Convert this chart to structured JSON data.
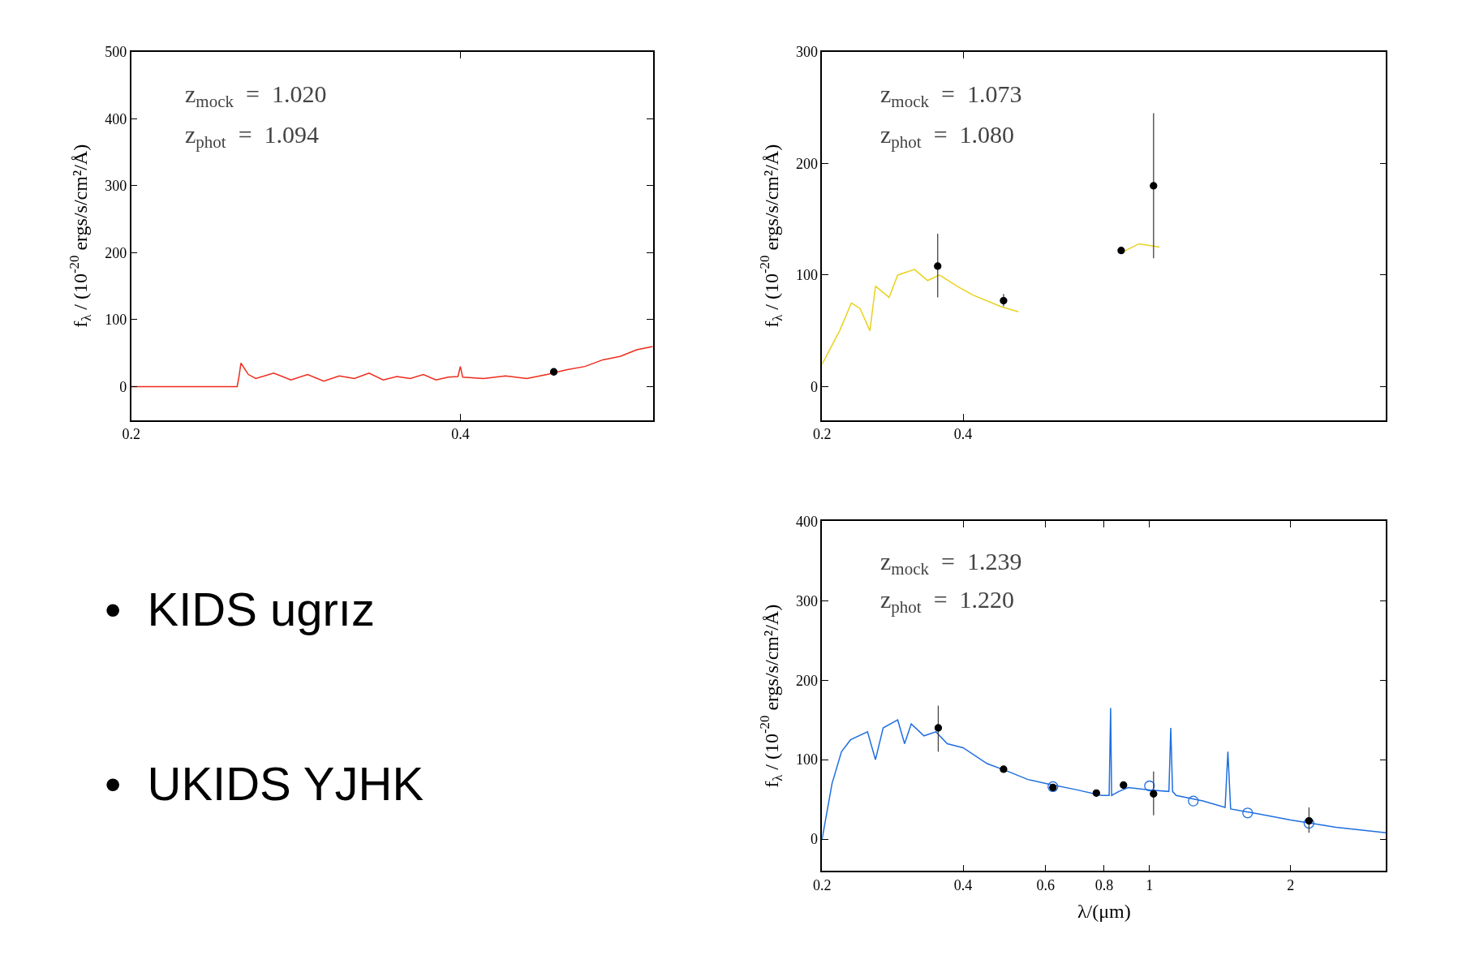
{
  "chart_data": [
    {
      "type": "line",
      "ylabel": "f$_{λ}$ / (10$^{-20}$ ergs/s/cm²/Å)",
      "log": "x",
      "xlim": [
        0.2,
        0.6
      ],
      "xticks": [
        0.2,
        0.4
      ],
      "ylim": [
        -50,
        500
      ],
      "yticks": [
        0,
        100,
        200,
        300,
        400,
        500
      ],
      "annotations": [
        "z$_{mock}$  =  1.020",
        "z$_{phot}$  =  1.094"
      ],
      "series": [
        {
          "type": "line",
          "color": "#ee2a1b",
          "x": [
            0.2,
            0.25,
            0.251,
            0.252,
            0.256,
            0.26,
            0.27,
            0.28,
            0.29,
            0.3,
            0.31,
            0.32,
            0.33,
            0.34,
            0.35,
            0.36,
            0.37,
            0.38,
            0.39,
            0.398,
            0.4,
            0.402,
            0.42,
            0.44,
            0.46,
            0.48,
            0.5,
            0.52,
            0.54,
            0.56,
            0.58,
            0.6
          ],
          "values": [
            0,
            0,
            15,
            35,
            18,
            12,
            20,
            10,
            18,
            8,
            16,
            12,
            20,
            10,
            15,
            12,
            18,
            10,
            14,
            15,
            30,
            14,
            12,
            16,
            12,
            18,
            25,
            30,
            40,
            45,
            55,
            60
          ]
        },
        {
          "type": "scatter",
          "marker": "circle",
          "color": "#000000",
          "x": [
            0.487
          ],
          "values": [
            22
          ]
        }
      ]
    },
    {
      "type": "line",
      "ylabel": "f$_{λ}$ / (10$^{-20}$ ergs/s/cm²/Å)",
      "log": "x",
      "xlim": [
        0.2,
        3.2
      ],
      "xticks": [
        0.2,
        0.4
      ],
      "ylim": [
        -30,
        300
      ],
      "yticks": [
        0,
        100,
        200,
        300
      ],
      "annotations": [
        "z$_{mock}$  =  1.073",
        "z$_{phot}$  =  1.080"
      ],
      "series": [
        {
          "type": "line",
          "color": "#e8d21c",
          "x": [
            0.2,
            0.218,
            0.231,
            0.241,
            0.253,
            0.26,
            0.278,
            0.29,
            0.315,
            0.336,
            0.356,
            0.388,
            0.42,
            0.48,
            0.525,
            0.53,
            0.87,
            0.95,
            1.05
          ],
          "values": [
            20,
            50,
            75,
            70,
            50,
            90,
            80,
            100,
            105,
            95,
            100,
            90,
            82,
            72,
            67,
            null,
            120,
            128,
            125
          ]
        },
        {
          "type": "scatter",
          "marker": "circle",
          "color": "#000000",
          "x": [
            0.353,
            0.488,
            0.87,
            1.02
          ],
          "values": [
            108,
            77,
            122,
            180
          ],
          "errors": [
            [
              80,
              137
            ],
            [
              72,
              83
            ],
            null,
            [
              115,
              245
            ]
          ]
        }
      ]
    },
    {
      "type": "line",
      "ylabel": "f$_{λ}$ / (10$^{-20}$ ergs/s/cm²/Å)",
      "xlabel": "λ/(μm)",
      "log": "x",
      "xlim": [
        0.2,
        3.2
      ],
      "xticks": [
        0.2,
        0.4,
        0.6,
        0.8,
        1,
        2
      ],
      "ylim": [
        -40,
        400
      ],
      "yticks": [
        0,
        100,
        200,
        300,
        400
      ],
      "annotations": [
        "z$_{mock}$  =  1.239",
        "z$_{phot}$  =  1.220"
      ],
      "series": [
        {
          "type": "line",
          "color": "#1f6fe0",
          "x": [
            0.2,
            0.21,
            0.22,
            0.23,
            0.25,
            0.26,
            0.27,
            0.29,
            0.3,
            0.31,
            0.33,
            0.35,
            0.37,
            0.4,
            0.45,
            0.5,
            0.55,
            0.6,
            0.7,
            0.79,
            0.82,
            0.826,
            0.83,
            0.86,
            0.9,
            1.0,
            1.1,
            1.11,
            1.12,
            1.14,
            1.3,
            1.45,
            1.47,
            1.49,
            1.7,
            2.0,
            2.5,
            3.2
          ],
          "values": [
            0,
            70,
            110,
            125,
            135,
            100,
            140,
            150,
            120,
            145,
            130,
            135,
            120,
            115,
            95,
            85,
            75,
            70,
            62,
            55,
            55,
            165,
            55,
            60,
            65,
            62,
            60,
            140,
            60,
            55,
            48,
            40,
            110,
            38,
            32,
            24,
            15,
            8
          ]
        },
        {
          "type": "scatter",
          "marker": "circle-open",
          "color": "#1f6fe0",
          "x": [
            0.622,
            1.0,
            1.24,
            1.62,
            2.19
          ],
          "values": [
            66,
            67,
            48,
            33,
            20
          ]
        },
        {
          "type": "scatter",
          "marker": "circle",
          "color": "#000000",
          "x": [
            0.354,
            0.488,
            0.622,
            0.77,
            0.88,
            1.02,
            2.19
          ],
          "values": [
            140,
            88,
            65,
            58,
            68,
            57,
            23
          ],
          "errors": [
            [
              110,
              168
            ],
            null,
            null,
            null,
            null,
            [
              30,
              85
            ],
            [
              8,
              40
            ]
          ]
        }
      ]
    },
    {
      "type": "other",
      "annotations": [
        "•  KIDS ugrız",
        "•  UKIDS YJHK"
      ]
    }
  ]
}
